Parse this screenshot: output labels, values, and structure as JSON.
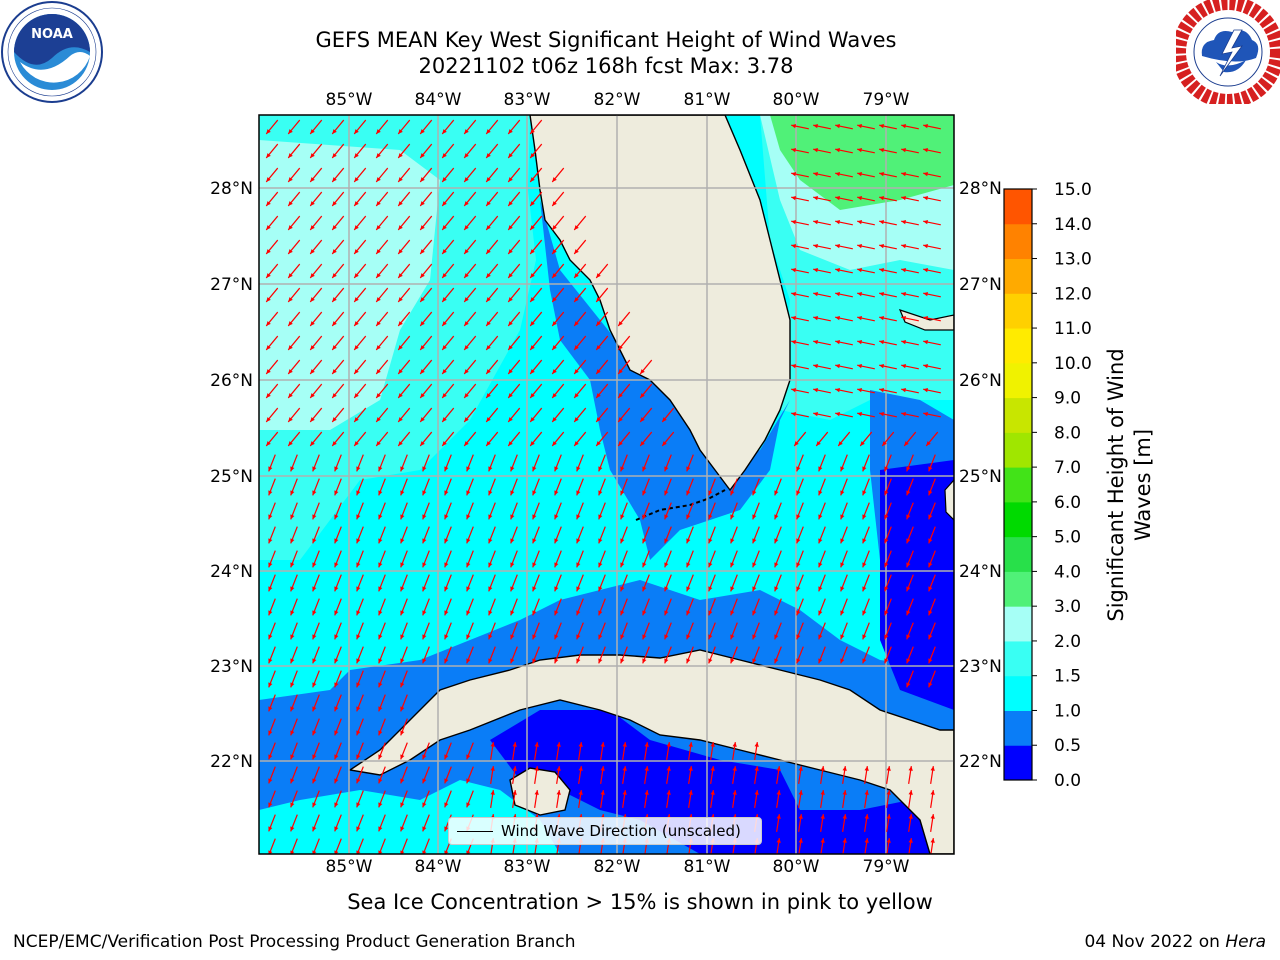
{
  "title": {
    "line1": "GEFS MEAN Key West Significant Height of Wind Waves",
    "line2": "20221102 t06z 168h fcst   Max: 3.78"
  },
  "map": {
    "lon_labels": [
      "85°W",
      "84°W",
      "83°W",
      "82°W",
      "81°W",
      "80°W",
      "79°W"
    ],
    "lat_labels": [
      "28°N",
      "27°N",
      "26°N",
      "25°N",
      "24°N",
      "23°N",
      "22°N"
    ],
    "legend": "Wind Wave Direction (unscaled)",
    "arrow_color": "#ff0000",
    "land_color": "#eeecdd",
    "coast_color": "#000000",
    "grid_color": "#b0b0b0"
  },
  "colorbar": {
    "label_line1": "Significant Height of Wind",
    "label_line2": "Waves [m]",
    "ticks": [
      "0.0",
      "0.5",
      "1.0",
      "1.5",
      "2.0",
      "3.0",
      "4.0",
      "5.0",
      "6.0",
      "7.0",
      "8.0",
      "9.0",
      "10.0",
      "11.0",
      "12.0",
      "13.0",
      "14.0",
      "15.0"
    ],
    "colors": [
      "#0000ff",
      "#0a7df7",
      "#00ffff",
      "#39fff3",
      "#a6fff6",
      "#50f178",
      "#28e04a",
      "#00da00",
      "#42e318",
      "#a0e600",
      "#c8e600",
      "#f0f200",
      "#ffeb00",
      "#ffd000",
      "#ffaa00",
      "#ff8200",
      "#ff5500",
      "#ff2a00",
      "#ff0000"
    ]
  },
  "icons": {
    "left_logo": "noaa-logo",
    "right_logo": "nws-logo"
  },
  "ice_note": "Sea Ice Concentration > 15% is shown in pink to yellow",
  "footer": {
    "left": "NCEP/EMC/Verification Post Processing Product Generation Branch",
    "right_date": "04 Nov 2022 on ",
    "right_machine": "Hera"
  }
}
